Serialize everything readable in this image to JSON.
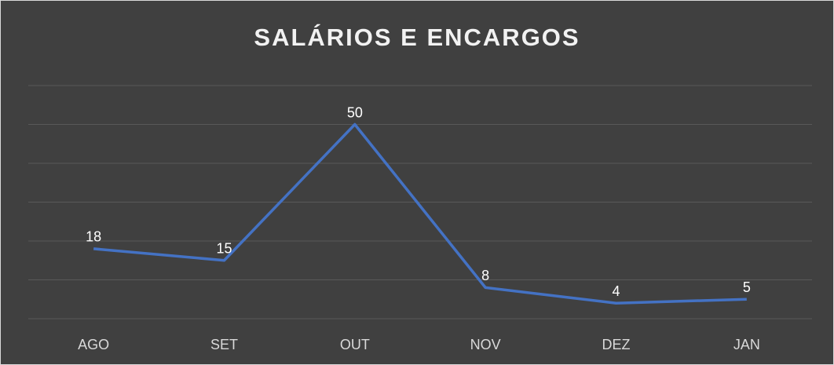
{
  "chart_data": {
    "type": "line",
    "title": "SALÁRIOS E ENCARGOS",
    "categories": [
      "AGO",
      "SET",
      "OUT",
      "NOV",
      "DEZ",
      "JAN"
    ],
    "values": [
      18,
      15,
      50,
      8,
      4,
      5
    ],
    "color": "#4472c4",
    "ylim": [
      0,
      60
    ],
    "yticks": [
      0,
      10,
      20,
      30,
      40,
      50,
      60
    ],
    "grid": true
  }
}
